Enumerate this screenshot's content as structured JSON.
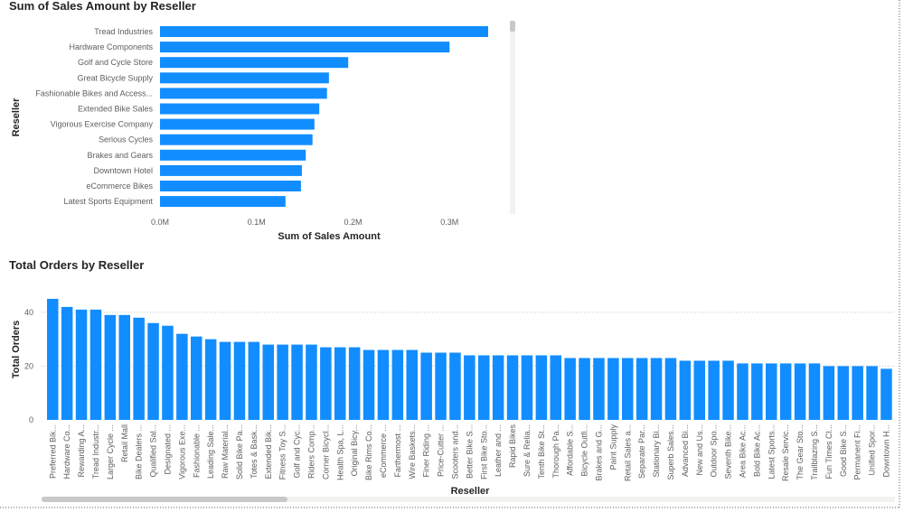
{
  "colors": {
    "bar": "#118dff",
    "text": "#252423",
    "tick": "#605e5c"
  },
  "chart_data": [
    {
      "type": "bar",
      "orientation": "horizontal",
      "title": "Sum of Sales Amount by Reseller",
      "xlabel": "Sum of Sales Amount",
      "ylabel": "Reseller",
      "categories": [
        "Tread Industries",
        "Hardware Components",
        "Golf and Cycle Store",
        "Great Bicycle Supply",
        "Fashionable Bikes and Access...",
        "Extended Bike Sales",
        "Vigorous Exercise Company",
        "Serious Cycles",
        "Brakes and Gears",
        "Downtown Hotel",
        "eCommerce Bikes",
        "Latest Sports Equipment"
      ],
      "values": [
        0.34,
        0.3,
        0.195,
        0.175,
        0.173,
        0.165,
        0.16,
        0.158,
        0.151,
        0.147,
        0.146,
        0.13
      ],
      "xlim": [
        0,
        0.34
      ],
      "xticks": [
        {
          "value": 0,
          "label": "0.0M"
        },
        {
          "value": 0.1,
          "label": "0.1M"
        },
        {
          "value": 0.2,
          "label": "0.2M"
        },
        {
          "value": 0.3,
          "label": "0.3M"
        }
      ],
      "grid": false,
      "scrollbar": "vertical"
    },
    {
      "type": "bar",
      "orientation": "vertical",
      "title": "Total Orders by Reseller",
      "xlabel": "Reseller",
      "ylabel": "Total Orders",
      "categories": [
        "Preferred Bik...",
        "Hardware Co...",
        "Rewarding A...",
        "Tread Industr...",
        "Larger Cycle ...",
        "Retail Mall",
        "Bike Dealers ...",
        "Qualified Sal...",
        "Designated ...",
        "Vigorous Exe...",
        "Fashionable ...",
        "Leading Sale...",
        "Raw Material...",
        "Solid Bike Pa...",
        "Totes & Bask...",
        "Extended Bik...",
        "Fitness Toy S...",
        "Golf and Cyc...",
        "Riders Comp...",
        "Corner Bicycl...",
        "Health Spa, L...",
        "Original Bicy...",
        "Bike Rims Co...",
        "eCommerce ...",
        "Farthermost ...",
        "Wire Baskets...",
        "Finer Riding ...",
        "Price-Cutter ...",
        "Scooters and...",
        "Better Bike S...",
        "First Bike Sto...",
        "Leather and ...",
        "Rapid Bikes",
        "Sure & Relia...",
        "Tenth Bike St...",
        "Thorough Pa...",
        "Affordable S...",
        "Bicycle Outfi...",
        "Brakes and G...",
        "Paint Supply",
        "Retail Sales a...",
        "Separate Par...",
        "Stationary Bi...",
        "Superb Sales...",
        "Advanced Bi...",
        "New and Us...",
        "Outdoor Spo...",
        "Seventh Bike...",
        "Area Bike Ac...",
        "Bold Bike Ac...",
        "Latest Sports...",
        "Resale Servic...",
        "The Gear Sto...",
        "Trailblazing S...",
        "Fun Times Cl...",
        "Good Bike S...",
        "Permanent Fi...",
        "Unified Spor...",
        "Downtown H..."
      ],
      "values": [
        45,
        42,
        41,
        41,
        39,
        39,
        38,
        36,
        35,
        32,
        31,
        30,
        29,
        29,
        29,
        28,
        28,
        28,
        28,
        27,
        27,
        27,
        26,
        26,
        26,
        26,
        25,
        25,
        25,
        24,
        24,
        24,
        24,
        24,
        24,
        24,
        23,
        23,
        23,
        23,
        23,
        23,
        23,
        23,
        22,
        22,
        22,
        22,
        21,
        21,
        21,
        21,
        21,
        21,
        20,
        20,
        20,
        20,
        19
      ],
      "ylim": [
        0,
        47
      ],
      "yticks": [
        {
          "value": 0,
          "label": "0"
        },
        {
          "value": 20,
          "label": "20"
        },
        {
          "value": 40,
          "label": "40"
        }
      ],
      "grid": true,
      "scrollbar": "horizontal"
    }
  ]
}
